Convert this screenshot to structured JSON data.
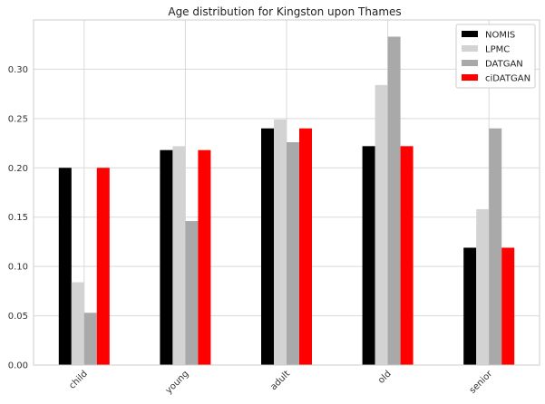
{
  "chart_data": {
    "type": "bar",
    "title": "Age distribution for Kingston upon Thames",
    "xlabel": "",
    "ylabel": "",
    "categories": [
      "child",
      "young",
      "adult",
      "old",
      "senior"
    ],
    "ylim": [
      0,
      0.35
    ],
    "yticks": [
      "0.00",
      "0.05",
      "0.10",
      "0.15",
      "0.20",
      "0.25",
      "0.30"
    ],
    "grid": true,
    "legend_position": "top-right",
    "series": [
      {
        "name": "NOMIS",
        "color": "#000000",
        "values": [
          0.2,
          0.218,
          0.24,
          0.222,
          0.119
        ]
      },
      {
        "name": "LPMC",
        "color": "#d3d3d3",
        "values": [
          0.084,
          0.222,
          0.249,
          0.284,
          0.158
        ]
      },
      {
        "name": "DATGAN",
        "color": "#a9a9a9",
        "values": [
          0.053,
          0.146,
          0.226,
          0.333,
          0.24
        ]
      },
      {
        "name": "ciDATGAN",
        "color": "#ff0000",
        "values": [
          0.2,
          0.218,
          0.24,
          0.222,
          0.119
        ]
      }
    ]
  }
}
